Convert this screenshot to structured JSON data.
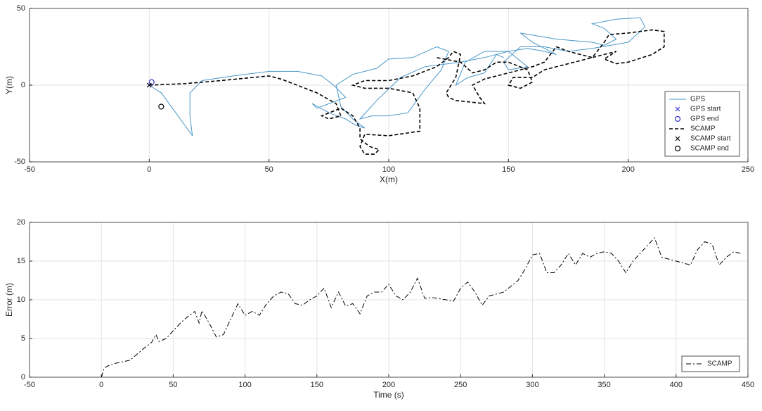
{
  "chart_data": [
    {
      "type": "line",
      "xlabel": "X(m)",
      "ylabel": "Y(m)",
      "xlim": [
        -50,
        250
      ],
      "xticks": [
        -50,
        0,
        50,
        100,
        150,
        200,
        250
      ],
      "ylim": [
        -50,
        50
      ],
      "yticks": [
        -50,
        0,
        50
      ],
      "grid": true,
      "legend": "lower right",
      "series": [
        {
          "name": "GPS",
          "color": "#4a97c9",
          "line_style": "solid",
          "x": [
            0,
            5,
            12,
            18,
            17,
            17,
            22,
            35,
            50,
            62,
            72,
            77,
            82,
            70,
            68,
            75,
            82,
            86,
            90,
            85,
            80,
            78,
            85,
            95,
            100,
            110,
            120,
            125,
            122,
            115,
            108,
            100,
            93,
            88,
            95,
            105,
            115,
            130,
            140,
            150,
            158,
            165,
            170,
            160,
            155,
            170,
            185,
            190,
            195,
            190,
            185,
            195,
            205,
            207,
            200,
            185,
            175,
            165,
            155,
            148,
            150,
            158,
            150,
            140,
            132,
            128,
            133,
            140,
            145,
            148
          ],
          "values": [
            0,
            -5,
            -20,
            -33,
            -20,
            -5,
            3,
            6,
            9,
            9,
            6,
            0,
            -8,
            -15,
            -12,
            -18,
            -22,
            -26,
            -28,
            -22,
            -14,
            0,
            7,
            11,
            17,
            18,
            25,
            22,
            10,
            -3,
            -18,
            -20,
            -20,
            -22,
            -10,
            5,
            12,
            15,
            18,
            22,
            24,
            22,
            20,
            28,
            34,
            30,
            28,
            26,
            30,
            37,
            40,
            43,
            44,
            38,
            28,
            24,
            22,
            25,
            25,
            15,
            10,
            12,
            22,
            22,
            15,
            0,
            5,
            8,
            20,
            18
          ]
        },
        {
          "name": "GPS start",
          "color": "#3434c8",
          "marker": "x",
          "x": [
            0
          ],
          "values": [
            0
          ]
        },
        {
          "name": "GPS end",
          "color": "#3434c8",
          "marker": "o",
          "x": [
            1
          ],
          "values": [
            2
          ]
        },
        {
          "name": "SCAMP",
          "color": "#000000",
          "line_style": "dashed",
          "x": [
            0,
            15,
            30,
            50,
            55,
            60,
            70,
            78,
            80,
            75,
            72,
            80,
            85,
            88,
            88,
            92,
            96,
            94,
            90,
            88,
            90,
            100,
            113,
            113,
            110,
            100,
            90,
            85,
            90,
            100,
            110,
            120,
            125,
            127,
            130,
            128,
            124,
            125,
            128,
            140,
            138,
            135,
            140,
            150,
            160,
            165,
            170,
            175,
            180,
            185,
            190,
            192,
            200,
            210,
            215,
            215,
            210,
            200,
            195,
            190,
            195,
            185,
            175,
            165,
            160,
            152,
            150,
            155,
            160,
            158,
            150,
            145,
            140,
            135,
            130,
            120
          ],
          "values": [
            0,
            1,
            3,
            6,
            4,
            1,
            -5,
            -12,
            -20,
            -22,
            -20,
            -15,
            -20,
            -28,
            -35,
            -40,
            -42,
            -45,
            -45,
            -40,
            -32,
            -33,
            -30,
            -15,
            -5,
            -2,
            -2,
            0,
            3,
            3,
            6,
            12,
            18,
            22,
            20,
            5,
            -5,
            -8,
            -10,
            -12,
            -8,
            0,
            4,
            8,
            12,
            15,
            25,
            22,
            20,
            18,
            28,
            33,
            34,
            36,
            35,
            25,
            20,
            15,
            14,
            17,
            22,
            18,
            14,
            10,
            5,
            5,
            0,
            -2,
            2,
            10,
            15,
            15,
            10,
            8,
            15,
            18
          ]
        },
        {
          "name": "SCAMP start",
          "color": "#000000",
          "marker": "x",
          "x": [
            0
          ],
          "values": [
            0
          ]
        },
        {
          "name": "SCAMP end",
          "color": "#000000",
          "marker": "o",
          "x": [
            5
          ],
          "values": [
            -14
          ]
        }
      ]
    },
    {
      "type": "line",
      "xlabel": "Time (s)",
      "ylabel": "Error (m)",
      "xlim": [
        -50,
        450
      ],
      "xticks": [
        -50,
        0,
        50,
        100,
        150,
        200,
        250,
        300,
        350,
        400,
        450
      ],
      "ylim": [
        0,
        20
      ],
      "yticks": [
        0,
        5,
        10,
        15,
        20
      ],
      "grid": true,
      "legend": "lower right",
      "series": [
        {
          "name": "SCAMP",
          "color": "#000000",
          "line_style": "dashdot",
          "x": [
            0,
            2,
            5,
            10,
            15,
            20,
            25,
            30,
            35,
            38,
            40,
            45,
            50,
            55,
            60,
            65,
            68,
            70,
            75,
            80,
            85,
            90,
            95,
            100,
            105,
            110,
            115,
            120,
            125,
            130,
            135,
            140,
            145,
            150,
            155,
            160,
            165,
            170,
            175,
            180,
            185,
            190,
            195,
            200,
            205,
            210,
            215,
            220,
            225,
            230,
            240,
            245,
            250,
            255,
            260,
            265,
            270,
            280,
            290,
            295,
            300,
            305,
            310,
            315,
            320,
            325,
            330,
            335,
            340,
            345,
            350,
            355,
            360,
            365,
            370,
            380,
            385,
            390,
            400,
            410,
            415,
            420,
            425,
            430,
            435,
            440,
            445
          ],
          "values": [
            0,
            1.2,
            1.5,
            1.8,
            2,
            2.2,
            3,
            3.8,
            4.5,
            5.5,
            4.6,
            5,
            6,
            7,
            7.8,
            8.5,
            7,
            8.6,
            7,
            5.2,
            5.5,
            7.5,
            9.5,
            8,
            8.5,
            8,
            9.5,
            10.5,
            11,
            10.8,
            9.5,
            9.3,
            10,
            10.5,
            11.5,
            9,
            11,
            9.2,
            9.5,
            8.2,
            10.5,
            11,
            11,
            12,
            10.5,
            10,
            11,
            12.8,
            10.2,
            10.3,
            10,
            9.8,
            11.5,
            12.3,
            11,
            9.3,
            10.5,
            11,
            12.5,
            14,
            15.8,
            16,
            13.5,
            13.5,
            14.5,
            16,
            14.5,
            16,
            15.5,
            16,
            16.2,
            16,
            15,
            13.5,
            15,
            17,
            18,
            15.5,
            15,
            14.5,
            16.5,
            17.5,
            17.2,
            14.5,
            15.5,
            16.2,
            16
          ]
        }
      ]
    }
  ]
}
